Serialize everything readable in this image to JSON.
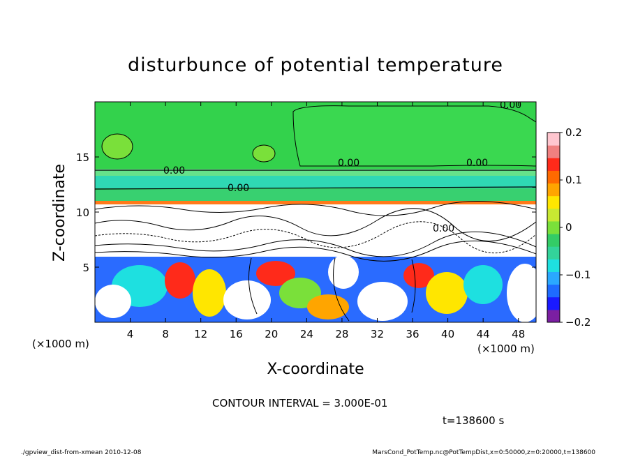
{
  "chart_data": {
    "type": "heatmap",
    "title": "disturbunce of potential temperature",
    "xlabel": "X-coordinate",
    "ylabel": "Z-coordinate",
    "x_unit": "(×1000 m)",
    "y_unit": "(×1000 m)",
    "xlim": [
      0,
      50
    ],
    "ylim": [
      0,
      20
    ],
    "x_ticks": [
      "4",
      "8",
      "12",
      "16",
      "20",
      "24",
      "28",
      "32",
      "36",
      "40",
      "44",
      "48"
    ],
    "x_tick_values": [
      4,
      8,
      12,
      16,
      20,
      24,
      28,
      32,
      36,
      40,
      44,
      48
    ],
    "y_ticks": [
      "5",
      "10",
      "15"
    ],
    "y_tick_values": [
      5,
      10,
      15
    ],
    "colorbar": {
      "min": -0.2,
      "max": 0.2,
      "tick_labels": [
        "0.2",
        "0.1",
        "0",
        "−0.1",
        "−0.2"
      ],
      "tick_values": [
        0.2,
        0.1,
        0,
        -0.1,
        -0.2
      ],
      "colors": [
        "#7b1fa2",
        "#1a1aff",
        "#1e6bff",
        "#2aa8ff",
        "#1ee0e0",
        "#33d39a",
        "#33cc66",
        "#7ae03a",
        "#c8e832",
        "#ffe600",
        "#ffa500",
        "#ff6a00",
        "#ff2a1a",
        "#f08080",
        "#ffc6cf"
      ]
    },
    "contour_labels": [
      "0.00",
      "0.00",
      "0.00",
      "0.00",
      "0.00",
      "0.00"
    ],
    "contour_interval_text": "CONTOUR INTERVAL = 3.000E-01",
    "time_text": "t=138600 s"
  },
  "footer": {
    "left": "./gpview_dist-from-xmean  2010-12-08",
    "right": "MarsCond_PotTemp.nc@PotTempDist,x=0:50000,z=0:20000,t=138600"
  }
}
